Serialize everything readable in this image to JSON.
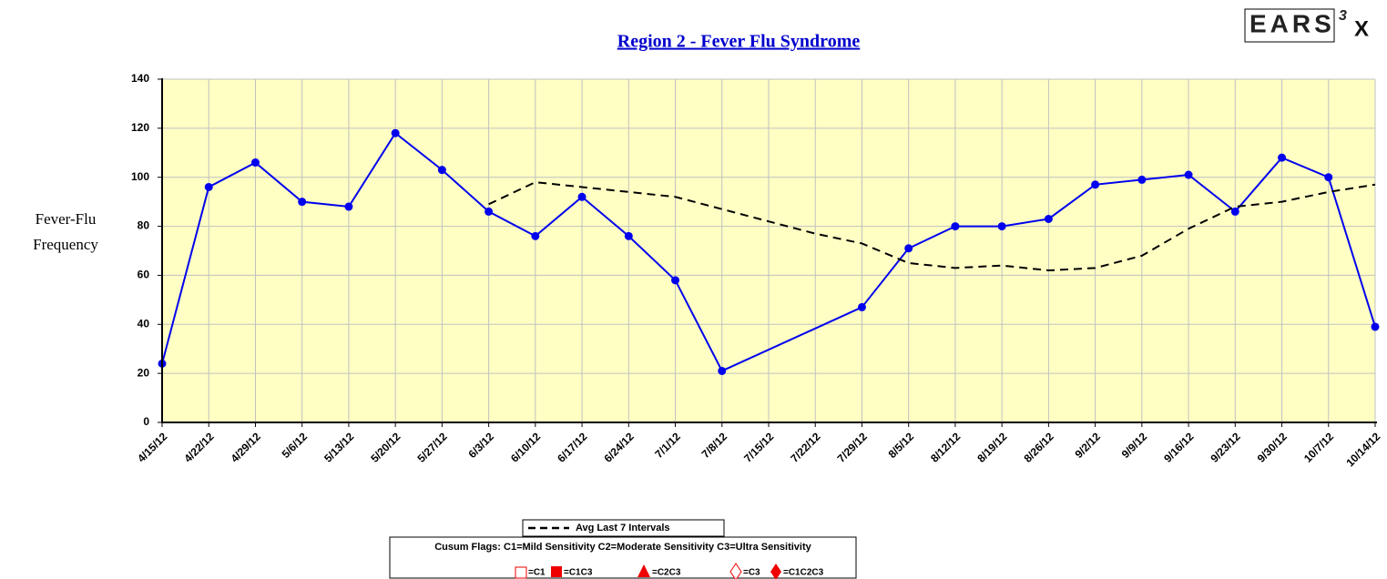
{
  "chart_data": {
    "type": "line",
    "title": "Region 2 - Fever Flu Syndrome",
    "logo": {
      "letters": "EARS",
      "superscript": "3",
      "mark": "X"
    },
    "y_label": [
      "Fever-Flu",
      "Frequency"
    ],
    "categories": [
      "4/15/12",
      "4/22/12",
      "4/29/12",
      "5/6/12",
      "5/13/12",
      "5/20/12",
      "5/27/12",
      "6/3/12",
      "6/10/12",
      "6/17/12",
      "6/24/12",
      "7/1/12",
      "7/8/12",
      "7/15/12",
      "7/22/12",
      "7/29/12",
      "8/5/12",
      "8/12/12",
      "8/19/12",
      "8/26/12",
      "9/2/12",
      "9/9/12",
      "9/16/12",
      "9/23/12",
      "9/30/12",
      "10/7/12",
      "10/14/12"
    ],
    "series": [
      {
        "name": "Fever-Flu Frequency",
        "color": "#0000ee",
        "dash": false,
        "markers": true,
        "values": [
          24,
          96,
          106,
          90,
          88,
          118,
          103,
          86,
          76,
          92,
          76,
          58,
          21,
          null,
          null,
          47,
          71,
          80,
          80,
          83,
          97,
          99,
          101,
          86,
          108,
          100,
          39
        ]
      },
      {
        "name": "Avg Last 7 Intervals",
        "color": "#000000",
        "dash": true,
        "markers": false,
        "values": [
          null,
          null,
          null,
          null,
          null,
          null,
          null,
          89,
          98,
          96,
          94,
          92,
          87,
          82,
          77,
          73,
          65,
          63,
          64,
          62,
          63,
          68,
          79,
          88,
          90,
          94,
          97
        ]
      }
    ],
    "ylim": [
      0,
      140
    ],
    "yticks": [
      0,
      20,
      40,
      60,
      80,
      100,
      120,
      140
    ],
    "grid": true,
    "cusum_legend": {
      "title": "Cusum Flags:  C1=Mild Sensitivity  C2=Moderate Sensitivity  C3=Ultra Sensitivity",
      "entries": [
        "=C1",
        "=C1C3",
        "=C2C3",
        "=C3",
        "=C1C2C3"
      ]
    }
  }
}
